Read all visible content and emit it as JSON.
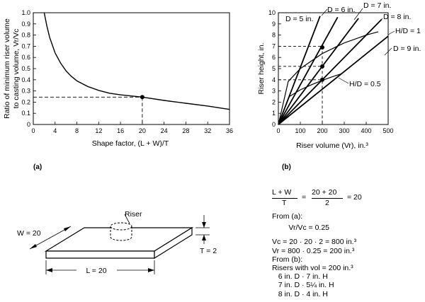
{
  "colors": {
    "ink": "#000000",
    "paper": "#ffffff"
  },
  "chart_data": [
    {
      "type": "line",
      "panel_label": "(a)",
      "xlabel": "Shape factor, (L + W)/T",
      "ylabel_lines": [
        "Ratio of minimum riser volume",
        "to casting volume, Vr/Vc"
      ],
      "xlim": [
        0,
        36
      ],
      "ylim": [
        0,
        1.0
      ],
      "xticks": [
        "0",
        "4",
        "8",
        "12",
        "16",
        "20",
        "24",
        "28",
        "32",
        "36"
      ],
      "yticks": [
        "0",
        "0.1",
        "0.2",
        "0.3",
        "0.4",
        "0.5",
        "0.6",
        "0.7",
        "0.8",
        "0.9",
        "1.0"
      ],
      "series": [
        {
          "x": [
            2,
            2.5,
            3,
            4,
            5,
            6,
            7,
            8,
            10,
            12,
            14,
            16,
            18,
            20,
            24,
            28,
            32,
            36
          ],
          "y": [
            1.0,
            0.88,
            0.78,
            0.64,
            0.55,
            0.48,
            0.43,
            0.39,
            0.34,
            0.305,
            0.28,
            0.265,
            0.255,
            0.245,
            0.215,
            0.19,
            0.165,
            0.135
          ]
        }
      ],
      "marker": {
        "x": 20,
        "y": 0.245
      }
    },
    {
      "type": "line",
      "panel_label": "(b)",
      "xlabel": "Riser volume (Vr), in.³",
      "ylabel": "Riser height, in.",
      "xlim": [
        0,
        500
      ],
      "ylim": [
        0,
        10
      ],
      "xticks": [
        "0",
        "100",
        "200",
        "300",
        "400",
        "500"
      ],
      "yticks": [
        "0",
        "1",
        "2",
        "3",
        "4",
        "5",
        "6",
        "7",
        "8",
        "9",
        "10"
      ],
      "series": [
        {
          "name": "D = 5 in.",
          "x": [
            0,
            190
          ],
          "y": [
            0,
            9.7
          ]
        },
        {
          "name": "D = 6 in.",
          "x": [
            0,
            270
          ],
          "y": [
            0,
            9.6
          ]
        },
        {
          "name": "D = 7 in.",
          "x": [
            0,
            365
          ],
          "y": [
            0,
            9.5
          ]
        },
        {
          "name": "D = 8 in.",
          "x": [
            0,
            470
          ],
          "y": [
            0,
            9.4
          ]
        },
        {
          "name": "D = 9 in.",
          "x": [
            0,
            500
          ],
          "y": [
            0,
            7.9
          ]
        },
        {
          "name": "H/D = 1",
          "x": [
            0,
            45,
            100,
            200,
            300,
            400,
            455
          ],
          "y": [
            0,
            3.85,
            5.0,
            6.35,
            7.3,
            8.0,
            8.3
          ]
        },
        {
          "name": "H/D = 0.5",
          "x": [
            0,
            50,
            100,
            150,
            200,
            250,
            290
          ],
          "y": [
            0,
            2.5,
            3.1,
            3.55,
            3.95,
            4.3,
            4.55
          ]
        }
      ],
      "markers": [
        {
          "x": 200,
          "y": 4.0
        },
        {
          "x": 200,
          "y": 5.2
        },
        {
          "x": 200,
          "y": 6.9
        }
      ],
      "reference_y": [
        4,
        5.2,
        7
      ],
      "reference_x": 200
    }
  ],
  "figure": {
    "riser_label": "Riser",
    "w_label": "W = 20",
    "l_label": "L = 20",
    "t_label": "T = 2"
  },
  "calc": {
    "frac1_num": "L + W",
    "frac1_den": "T",
    "frac2_num": "20 + 20",
    "frac2_den": "2",
    "frac_result": "= 20",
    "lines": [
      "From (a):",
      "        Vr/Vc = 0.25",
      "",
      "Vc = 20 · 20 · 2 = 800 in.³",
      "Vr = 800 · 0.25 = 200 in.³",
      "From (b):",
      "Risers with vol = 200 in.³",
      "   6 in. D · 7 in. H",
      "   7 in. D · 5¼ in. H",
      "   8 in. D · 4 in. H"
    ]
  }
}
